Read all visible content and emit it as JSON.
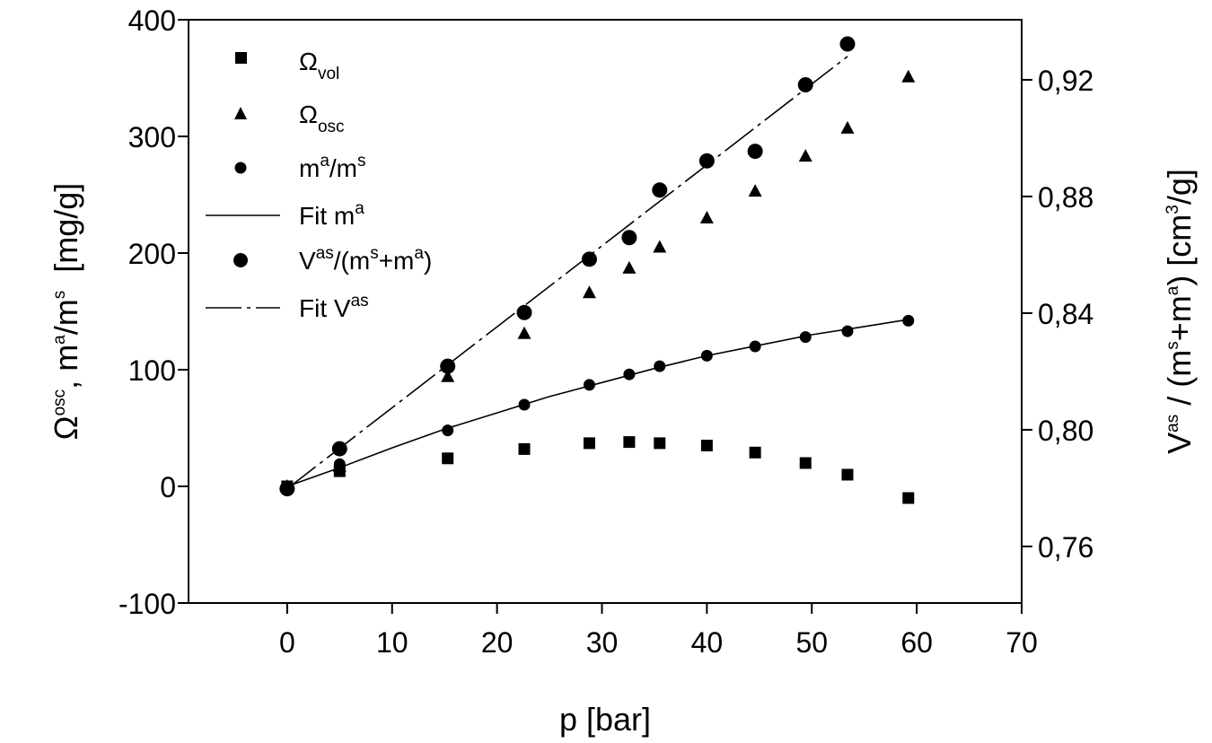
{
  "chart_data": {
    "type": "scatter",
    "title": "",
    "x": {
      "label": "p [bar]",
      "range": [
        -9.4,
        70
      ],
      "ticks": [
        0,
        10,
        20,
        30,
        40,
        50,
        60,
        70
      ],
      "tick_labels": [
        "0",
        "10",
        "20",
        "30",
        "40",
        "50",
        "60",
        "70"
      ]
    },
    "y_left": {
      "label_symbol": "Ω",
      "label_sup1": "osc",
      "label_mid": ", m",
      "label_sup2": "a",
      "label_mid2": "/m",
      "label_sup3": "s",
      "label_unit": "  [mg/g]",
      "range": [
        -100,
        400
      ],
      "ticks": [
        -100,
        0,
        100,
        200,
        300,
        400
      ],
      "tick_labels": [
        "-100",
        "0",
        "100",
        "200",
        "300",
        "400"
      ]
    },
    "y_right": {
      "label_base": "V",
      "label_sup1": "as",
      "label_mid": " / (m",
      "label_sup2": "s",
      "label_mid2": "+m",
      "label_sup3": "a",
      "label_mid3": ") [cm",
      "label_sup4": "3",
      "label_unit": "/g]",
      "range": [
        0.7406,
        0.9406
      ],
      "ticks": [
        0.76,
        0.8,
        0.84,
        0.88,
        0.92
      ],
      "tick_labels": [
        "0,76",
        "0,80",
        "0,84",
        "0,88",
        "0,92"
      ]
    },
    "legend": {
      "placement": "top-left",
      "entries": [
        {
          "marker": "square",
          "base": "Ω",
          "sub": "vol"
        },
        {
          "marker": "triangle",
          "base": "Ω",
          "sub": "osc"
        },
        {
          "marker": "circle-small",
          "base": "m",
          "sup": "a",
          "mid": "/m",
          "sup2": "s"
        },
        {
          "marker": "solid-line",
          "base": "Fit m",
          "sup": "a"
        },
        {
          "marker": "circle-large",
          "base": "V",
          "sup": "as",
          "mid": "/(m",
          "sup2": "s",
          "mid2": "+m",
          "sup3": "a",
          "end": ")"
        },
        {
          "marker": "dash-line",
          "base": "Fit V",
          "sup": "as"
        }
      ]
    },
    "grid": false,
    "series": [
      {
        "marker": "square",
        "axis": "left",
        "x": [
          0,
          5,
          15.3,
          22.6,
          28.8,
          32.6,
          35.5,
          40,
          44.6,
          49.4,
          53.4,
          59.2
        ],
        "y": [
          0,
          13,
          24,
          32,
          37,
          38,
          37,
          35,
          29,
          20,
          10,
          -10
        ]
      },
      {
        "marker": "triangle",
        "axis": "left",
        "x": [
          0,
          5,
          15.3,
          22.6,
          28.8,
          32.6,
          35.5,
          40,
          44.6,
          49.4,
          53.4,
          59.2
        ],
        "y": [
          0,
          17,
          94,
          131,
          166,
          187,
          205,
          230,
          253,
          283,
          307,
          351
        ]
      },
      {
        "marker": "circle-small",
        "axis": "left",
        "x": [
          0,
          5,
          15.3,
          22.6,
          28.8,
          32.6,
          35.5,
          40,
          44.6,
          49.4,
          53.4,
          59.2
        ],
        "y": [
          0,
          19,
          48,
          70,
          87,
          96,
          103,
          112,
          120,
          128,
          133,
          142
        ]
      },
      {
        "marker": "circle-large",
        "axis": "right",
        "x": [
          0,
          5,
          15.3,
          22.6,
          28.8,
          32.6,
          35.5,
          40,
          44.6,
          49.4,
          53.4
        ],
        "y": [
          0.7798,
          0.7935,
          0.8218,
          0.8402,
          0.8585,
          0.8659,
          0.8822,
          0.8922,
          0.8955,
          0.9183,
          0.9323
        ]
      },
      {
        "marker": "solid-line",
        "axis": "left",
        "x": [
          0,
          5,
          10,
          15,
          20,
          25,
          30,
          35,
          40,
          45,
          50,
          55,
          59.2
        ],
        "y": [
          0,
          16,
          33,
          49,
          63,
          77,
          89,
          101,
          112,
          121,
          130,
          137,
          143
        ]
      },
      {
        "marker": "dash-line",
        "axis": "right",
        "x": [
          0,
          53.4
        ],
        "y": [
          0.7798,
          0.928
        ]
      }
    ]
  }
}
